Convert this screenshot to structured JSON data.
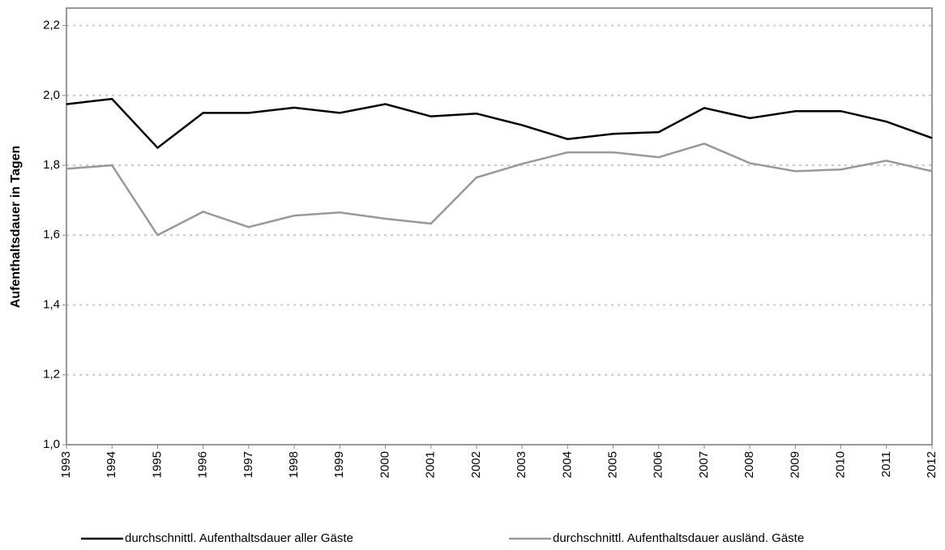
{
  "chart_data": {
    "type": "line",
    "y_label": "Aufenthaltsdauer in Tagen",
    "categories": [
      "1993",
      "1994",
      "1995",
      "1996",
      "1997",
      "1998",
      "1999",
      "2000",
      "2001",
      "2002",
      "2003",
      "2004",
      "2005",
      "2006",
      "2007",
      "2008",
      "2009",
      "2010",
      "2011",
      "2012"
    ],
    "series": [
      {
        "name": "durchschnittl. Aufenthaltsdauer aller Gäste",
        "color": "#000000",
        "values": [
          1.975,
          1.99,
          1.85,
          1.95,
          1.95,
          1.965,
          1.95,
          1.975,
          1.94,
          1.948,
          1.915,
          1.875,
          1.89,
          1.895,
          1.964,
          1.935,
          1.955,
          1.955,
          1.925,
          1.878
        ]
      },
      {
        "name": "durchschnittl. Aufenthaltsdauer ausländ. Gäste",
        "color": "#999999",
        "values": [
          1.79,
          1.8,
          1.6,
          1.667,
          1.623,
          1.656,
          1.665,
          1.647,
          1.633,
          1.765,
          1.804,
          1.837,
          1.837,
          1.823,
          1.862,
          1.806,
          1.783,
          1.788,
          1.813,
          1.783
        ]
      }
    ],
    "ylim": [
      1.0,
      2.25
    ],
    "yticks": [
      {
        "value": 1.0,
        "label": "1,0"
      },
      {
        "value": 1.2,
        "label": "1,2"
      },
      {
        "value": 1.4,
        "label": "1,4"
      },
      {
        "value": 1.6,
        "label": "1,6"
      },
      {
        "value": 1.8,
        "label": "1,8"
      },
      {
        "value": 2.0,
        "label": "2,0"
      },
      {
        "value": 2.2,
        "label": "2,2"
      }
    ],
    "grid": true,
    "legend": "bottom"
  }
}
